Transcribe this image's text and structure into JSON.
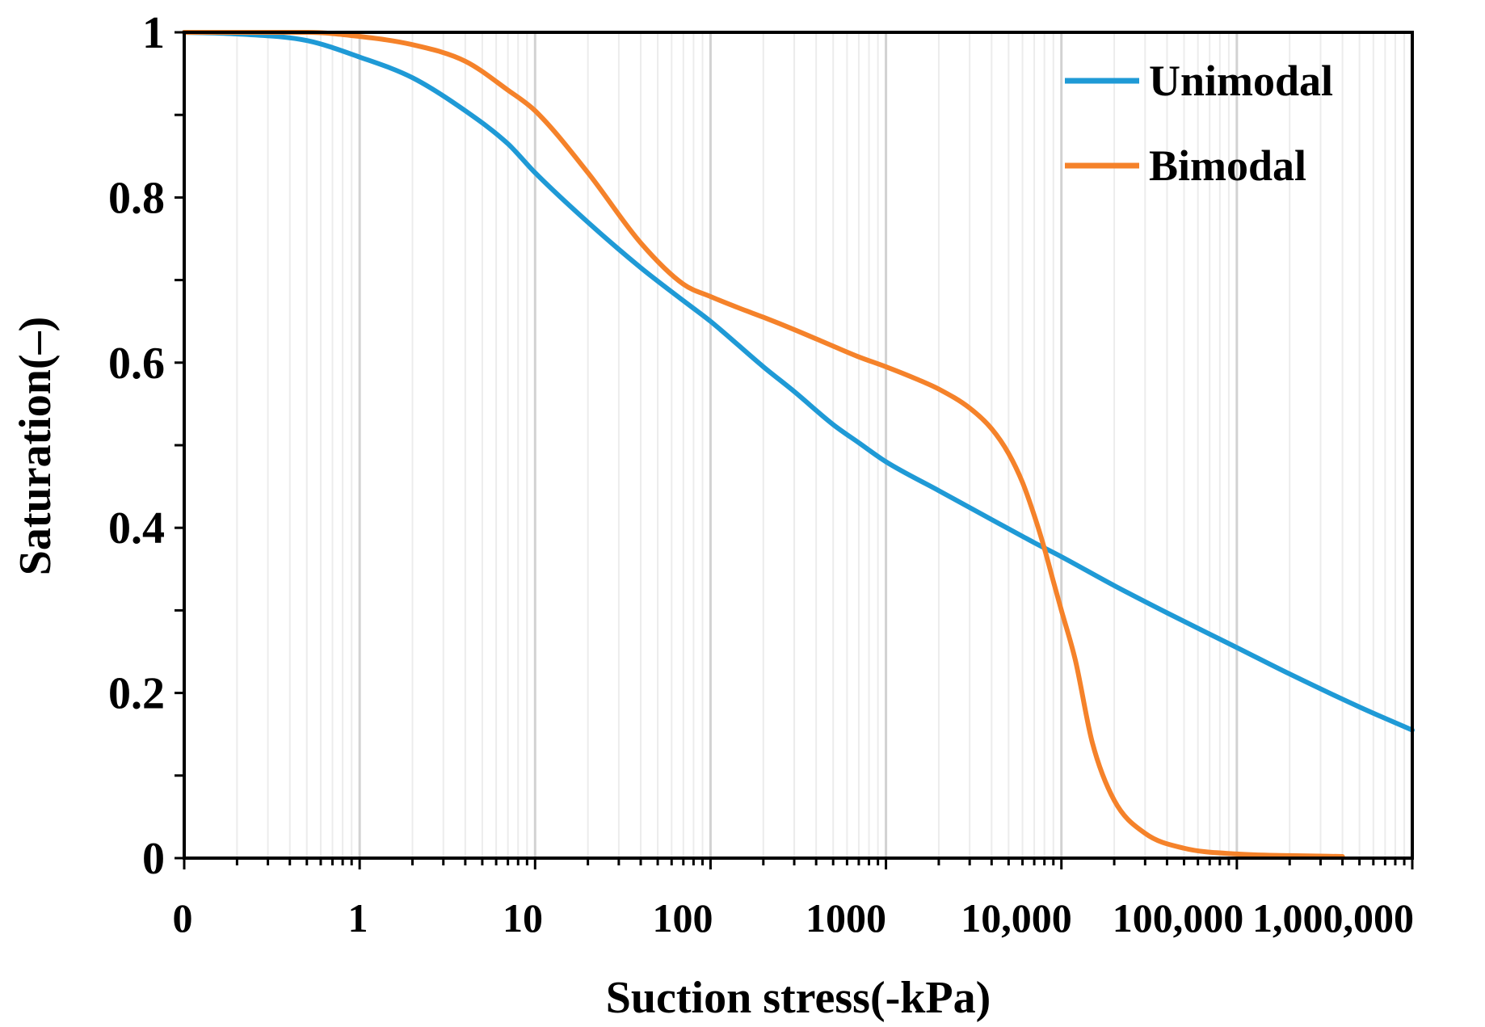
{
  "chart_data": {
    "type": "line",
    "title": "",
    "xlabel": "Suction stress(-kPa)",
    "ylabel": "Saturation(–)",
    "x_scale": "log",
    "xlim": [
      0.1,
      1000000
    ],
    "ylim": [
      0,
      1
    ],
    "grid": "vertical log minor lines",
    "legend_position": "top-right",
    "x_tick_labels": [
      {
        "value": 0.1,
        "label": "0"
      },
      {
        "value": 1,
        "label": "1"
      },
      {
        "value": 10,
        "label": "10"
      },
      {
        "value": 100,
        "label": "100"
      },
      {
        "value": 1000,
        "label": "1000"
      },
      {
        "value": 10000,
        "label": "10,000"
      },
      {
        "value": 100000,
        "label": "100,000"
      },
      {
        "value": 1000000,
        "label": "1,000,000"
      }
    ],
    "y_tick_labels": [
      {
        "value": 0,
        "label": "0"
      },
      {
        "value": 0.2,
        "label": "0.2"
      },
      {
        "value": 0.4,
        "label": "0.4"
      },
      {
        "value": 0.6,
        "label": "0.6"
      },
      {
        "value": 0.8,
        "label": "0.8"
      },
      {
        "value": 1,
        "label": "1"
      }
    ],
    "series": [
      {
        "name": "Unimodal",
        "color": "#1f9ad6",
        "x": [
          0.1,
          0.2,
          0.5,
          1,
          2,
          4,
          7,
          10,
          20,
          40,
          70,
          100,
          200,
          300,
          500,
          700,
          1000,
          2000,
          4000,
          7000,
          10000,
          20000,
          40000,
          100000,
          200000,
          500000,
          1000000
        ],
        "y": [
          1.0,
          0.998,
          0.99,
          0.97,
          0.945,
          0.905,
          0.865,
          0.83,
          0.77,
          0.715,
          0.675,
          0.65,
          0.595,
          0.565,
          0.525,
          0.503,
          0.48,
          0.445,
          0.41,
          0.382,
          0.365,
          0.33,
          0.297,
          0.255,
          0.223,
          0.183,
          0.155
        ]
      },
      {
        "name": "Bimodal",
        "color": "#f5822a",
        "x": [
          0.1,
          0.5,
          1,
          2,
          4,
          7,
          10,
          20,
          40,
          70,
          100,
          150,
          200,
          300,
          500,
          700,
          1000,
          1500,
          2000,
          3000,
          4000,
          5000,
          6000,
          7000,
          8000,
          9000,
          10000,
          12000,
          15000,
          20000,
          30000,
          50000,
          100000,
          200000,
          400000
        ],
        "y": [
          1.0,
          1.0,
          0.995,
          0.985,
          0.965,
          0.93,
          0.905,
          0.83,
          0.745,
          0.695,
          0.68,
          0.665,
          0.655,
          0.64,
          0.62,
          0.607,
          0.595,
          0.58,
          0.568,
          0.545,
          0.52,
          0.49,
          0.455,
          0.415,
          0.375,
          0.335,
          0.3,
          0.24,
          0.14,
          0.07,
          0.03,
          0.012,
          0.005,
          0.003,
          0.002
        ]
      }
    ]
  }
}
